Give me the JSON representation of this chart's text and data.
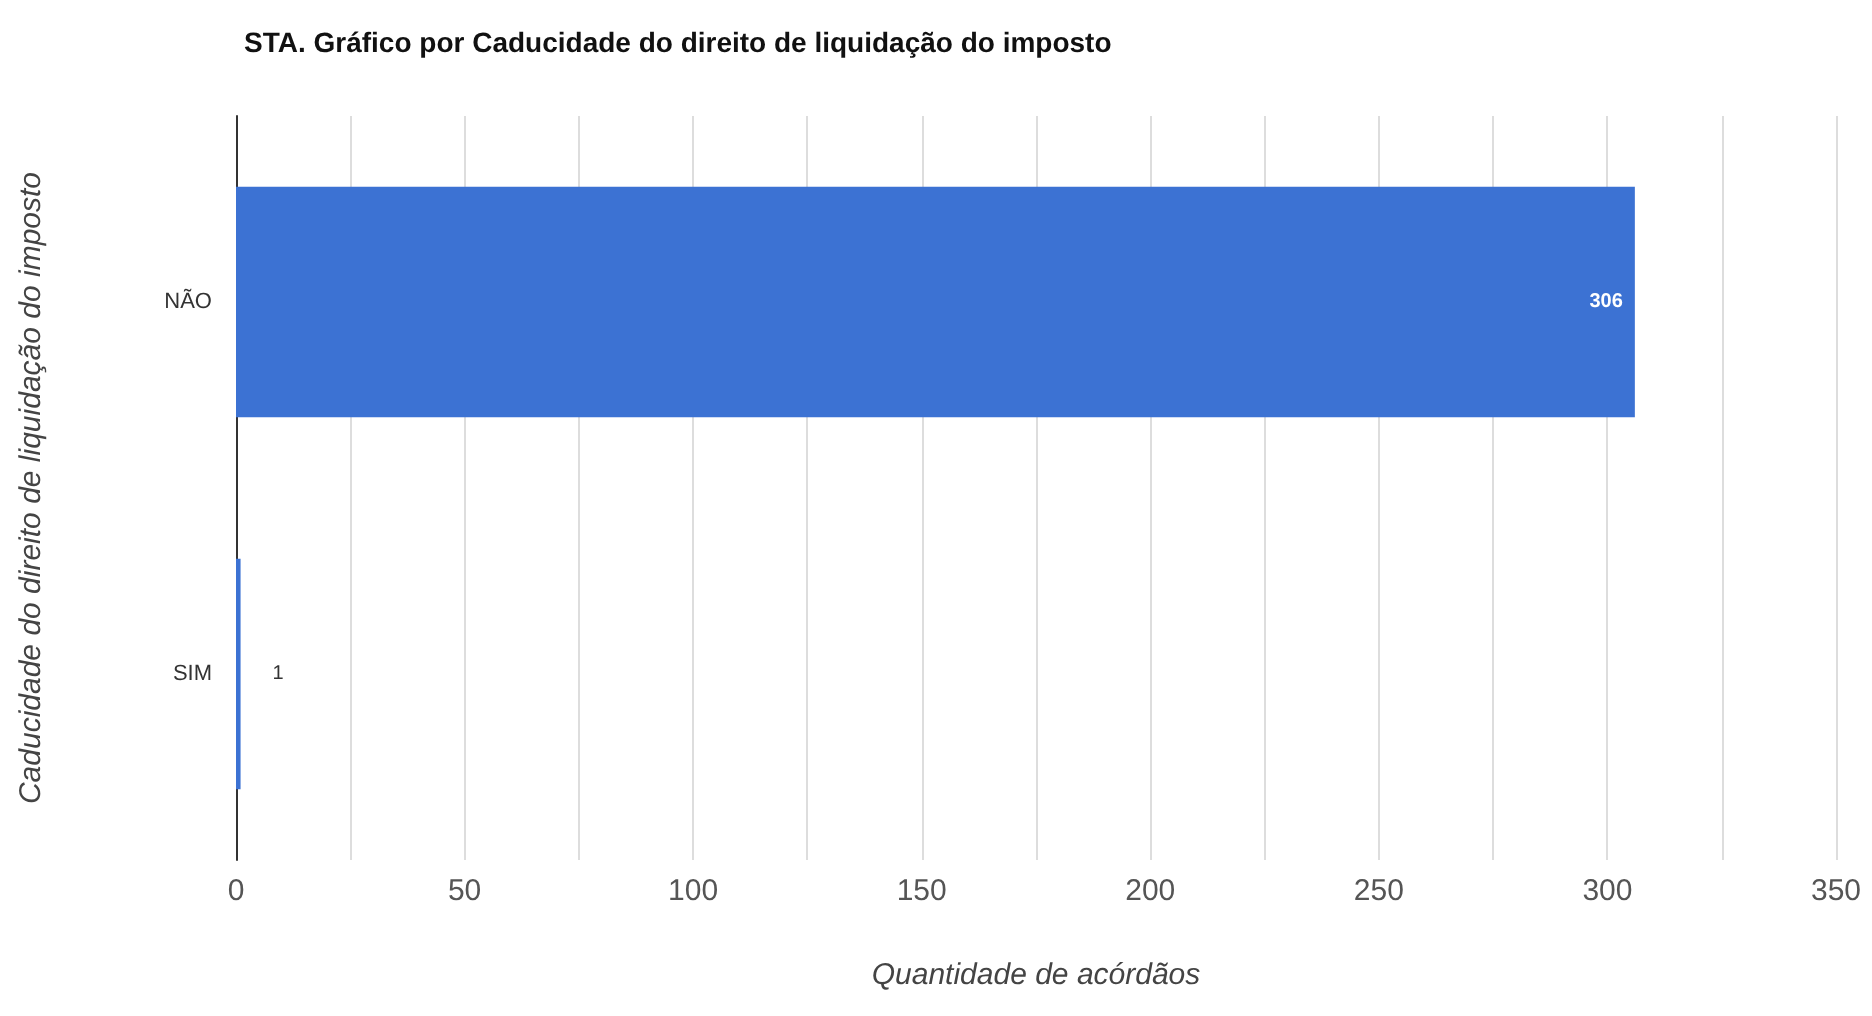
{
  "chart_data": {
    "type": "bar",
    "orientation": "horizontal",
    "title": "STA. Gráfico por Caducidade do direito de liquidação do imposto",
    "xlabel": "Quantidade de acórdãos",
    "ylabel": "Caducidade do direito de liquidação do imposto",
    "categories": [
      "NÃO",
      "SIM"
    ],
    "values": [
      306,
      1
    ],
    "color": "#3c72d3",
    "xlim": [
      0,
      350
    ],
    "xticks": [
      0,
      {
        "value": 25,
        "label": null
      },
      50,
      {
        "value": 75,
        "label": null
      },
      100,
      {
        "value": 125,
        "label": null
      },
      150,
      {
        "value": 175,
        "label": null
      },
      200,
      {
        "value": 225,
        "label": null
      },
      250,
      {
        "value": 275,
        "label": null
      },
      300,
      {
        "value": 325,
        "label": null
      },
      350
    ],
    "grid": "x",
    "data_labels": true
  }
}
